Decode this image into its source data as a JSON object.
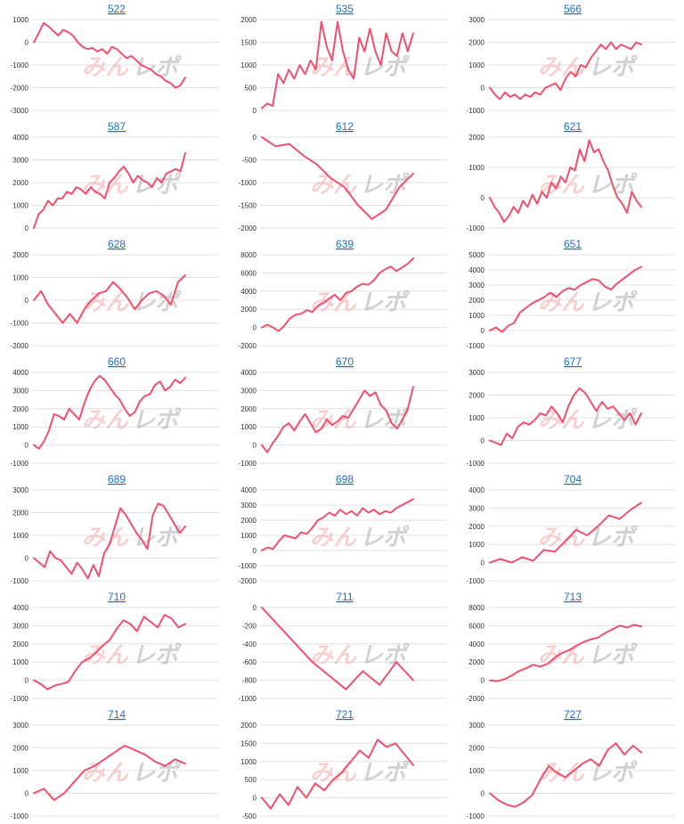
{
  "style": {
    "line_color": "#f0506e",
    "grid_color": "#e0e0e0",
    "title_color": "#1a6fd1",
    "watermark_pink": "#f2b4b4",
    "watermark_gray": "#b5b5b5"
  },
  "watermark": {
    "part1": "みん",
    "part2": "レポ"
  },
  "chart_data": [
    {
      "type": "line",
      "title": "522",
      "ylim": [
        -3000,
        1000
      ],
      "yticks": [
        "1000",
        "0",
        "-1000",
        "-2000",
        "-3000"
      ],
      "y": [
        0,
        400,
        850,
        700,
        500,
        300,
        550,
        450,
        300,
        0,
        -200,
        -300,
        -250,
        -400,
        -300,
        -500,
        -200,
        -300,
        -500,
        -700,
        -600,
        -800,
        -1000,
        -1100,
        -1200,
        -1400,
        -1500,
        -1700,
        -1800,
        -2000,
        -1900,
        -1550
      ]
    },
    {
      "type": "line",
      "title": "535",
      "ylim": [
        0,
        2000
      ],
      "yticks": [
        "2000",
        "1500",
        "1000",
        "500",
        "0"
      ],
      "y": [
        50,
        150,
        100,
        800,
        600,
        900,
        700,
        1000,
        800,
        1100,
        900,
        1950,
        1400,
        1100,
        1950,
        1300,
        900,
        700,
        1600,
        1300,
        1800,
        1300,
        1000,
        1700,
        1300,
        1200,
        1700,
        1300,
        1700
      ]
    },
    {
      "type": "line",
      "title": "566",
      "ylim": [
        -1000,
        3000
      ],
      "yticks": [
        "3000",
        "2000",
        "1000",
        "0",
        "-1000"
      ],
      "y": [
        0,
        -300,
        -500,
        -200,
        -400,
        -300,
        -500,
        -300,
        -400,
        -200,
        -300,
        0,
        100,
        200,
        -100,
        400,
        700,
        500,
        1000,
        900,
        1300,
        1600,
        1900,
        1700,
        2000,
        1700,
        1900,
        1800,
        1700,
        2000,
        1900
      ]
    },
    {
      "type": "line",
      "title": "587",
      "ylim": [
        0,
        4000
      ],
      "yticks": [
        "4000",
        "3000",
        "2000",
        "1000",
        "0"
      ],
      "y": [
        0,
        600,
        800,
        1200,
        1000,
        1300,
        1300,
        1600,
        1500,
        1800,
        1700,
        1500,
        1800,
        1600,
        1500,
        1300,
        2000,
        2200,
        2500,
        2700,
        2400,
        2000,
        2300,
        2100,
        2000,
        1800,
        2200,
        2000,
        2400,
        2500,
        2600,
        2500,
        3300
      ]
    },
    {
      "type": "line",
      "title": "612",
      "ylim": [
        -2000,
        0
      ],
      "yticks": [
        "0",
        "-500",
        "-1000",
        "-1500",
        "-2000"
      ],
      "y": [
        0,
        -200,
        -150,
        -400,
        -600,
        -900,
        -1100,
        -1500,
        -1800,
        -1600,
        -1100,
        -800
      ]
    },
    {
      "type": "line",
      "title": "621",
      "ylim": [
        -1000,
        2000
      ],
      "yticks": [
        "2000",
        "1000",
        "0",
        "-1000"
      ],
      "y": [
        0,
        -300,
        -500,
        -800,
        -600,
        -300,
        -500,
        -100,
        -300,
        100,
        -200,
        200,
        0,
        500,
        300,
        700,
        500,
        1000,
        900,
        1600,
        1200,
        1900,
        1500,
        1600,
        1200,
        900,
        400,
        0,
        -200,
        -500,
        200,
        -100,
        -300
      ]
    },
    {
      "type": "line",
      "title": "628",
      "ylim": [
        -2000,
        2000
      ],
      "yticks": [
        "2000",
        "1000",
        "0",
        "-1000",
        "-2000"
      ],
      "y": [
        0,
        400,
        -200,
        -600,
        -1000,
        -600,
        -1000,
        -400,
        0,
        300,
        400,
        800,
        500,
        100,
        -400,
        0,
        300,
        400,
        200,
        -200,
        800,
        1100
      ]
    },
    {
      "type": "line",
      "title": "639",
      "ylim": [
        -2000,
        8000
      ],
      "yticks": [
        "8000",
        "6000",
        "4000",
        "2000",
        "0",
        "-2000"
      ],
      "y": [
        0,
        300,
        0,
        -400,
        200,
        1000,
        1400,
        1500,
        1900,
        1700,
        2400,
        2700,
        3200,
        3600,
        3000,
        3800,
        4000,
        4500,
        4800,
        4700,
        5200,
        6000,
        6400,
        6700,
        6200,
        6600,
        7000,
        7600
      ]
    },
    {
      "type": "line",
      "title": "651",
      "ylim": [
        -1000,
        5000
      ],
      "yticks": [
        "5000",
        "4000",
        "3000",
        "2000",
        "1000",
        "0",
        "-1000"
      ],
      "y": [
        0,
        200,
        -100,
        300,
        500,
        1200,
        1500,
        1800,
        2000,
        2200,
        2500,
        2200,
        2600,
        2800,
        2700,
        3000,
        3200,
        3400,
        3300,
        2900,
        2700,
        3100,
        3400,
        3700,
        4000,
        4200
      ]
    },
    {
      "type": "line",
      "title": "660",
      "ylim": [
        -1000,
        4000
      ],
      "yticks": [
        "4000",
        "3000",
        "2000",
        "1000",
        "0",
        "-1000"
      ],
      "y": [
        0,
        -200,
        200,
        800,
        1700,
        1600,
        1400,
        2000,
        1700,
        1400,
        2300,
        3000,
        3500,
        3800,
        3600,
        3200,
        2800,
        2500,
        2000,
        1600,
        1800,
        2400,
        2700,
        2800,
        3300,
        3500,
        3000,
        3200,
        3600,
        3400,
        3700
      ]
    },
    {
      "type": "line",
      "title": "670",
      "ylim": [
        -1000,
        4000
      ],
      "yticks": [
        "4000",
        "3000",
        "2000",
        "1000",
        "0",
        "-1000"
      ],
      "y": [
        0,
        -400,
        100,
        500,
        1000,
        1200,
        800,
        1300,
        1700,
        1200,
        700,
        900,
        1400,
        1100,
        1300,
        1600,
        1500,
        2000,
        2500,
        3000,
        2700,
        2900,
        2200,
        1900,
        1200,
        900,
        1400,
        2000,
        3200
      ]
    },
    {
      "type": "line",
      "title": "677",
      "ylim": [
        -1000,
        3000
      ],
      "yticks": [
        "3000",
        "2000",
        "1000",
        "0",
        "-1000"
      ],
      "y": [
        0,
        -100,
        -200,
        300,
        100,
        600,
        800,
        700,
        900,
        1200,
        1100,
        1500,
        1200,
        800,
        1500,
        2000,
        2300,
        2100,
        1700,
        1300,
        1700,
        1400,
        1500,
        1200,
        900,
        1200,
        700,
        1200
      ]
    },
    {
      "type": "line",
      "title": "689",
      "ylim": [
        -1000,
        3000
      ],
      "yticks": [
        "3000",
        "2000",
        "1000",
        "0",
        "-1000"
      ],
      "y": [
        0,
        -200,
        -400,
        300,
        0,
        -100,
        -400,
        -700,
        -200,
        -500,
        -900,
        -300,
        -800,
        200,
        600,
        1400,
        2200,
        1900,
        1500,
        1100,
        800,
        400,
        1900,
        2400,
        2300,
        1900,
        1500,
        1100,
        1400
      ]
    },
    {
      "type": "line",
      "title": "698",
      "ylim": [
        -2000,
        4000
      ],
      "yticks": [
        "4000",
        "3000",
        "2000",
        "1000",
        "0",
        "-1000",
        "-2000"
      ],
      "y": [
        0,
        200,
        100,
        600,
        1000,
        900,
        800,
        1200,
        1100,
        1500,
        2000,
        2200,
        2500,
        2300,
        2700,
        2400,
        2600,
        2300,
        2800,
        2500,
        2700,
        2400,
        2600,
        2500,
        2800,
        3000,
        3200,
        3400
      ]
    },
    {
      "type": "line",
      "title": "704",
      "ylim": [
        -1000,
        4000
      ],
      "yticks": [
        "4000",
        "3000",
        "2000",
        "1000",
        "0",
        "-1000"
      ],
      "y": [
        0,
        200,
        0,
        300,
        100,
        700,
        600,
        1200,
        1800,
        1500,
        2000,
        2600,
        2400,
        2900,
        3300
      ]
    },
    {
      "type": "line",
      "title": "710",
      "ylim": [
        -1000,
        4000
      ],
      "yticks": [
        "4000",
        "3000",
        "2000",
        "1000",
        "0",
        "-1000"
      ],
      "y": [
        0,
        -200,
        -500,
        -300,
        -200,
        -100,
        500,
        1000,
        1200,
        1500,
        1900,
        2200,
        2800,
        3300,
        3100,
        2700,
        3500,
        3200,
        2900,
        3600,
        3400,
        2900,
        3100
      ]
    },
    {
      "type": "line",
      "title": "711",
      "ylim": [
        -1000,
        0
      ],
      "yticks": [
        "0",
        "-200",
        "-400",
        "-600",
        "-800",
        "-1000"
      ],
      "y": [
        0,
        -200,
        -400,
        -600,
        -750,
        -900,
        -700,
        -850,
        -600,
        -800
      ]
    },
    {
      "type": "line",
      "title": "713",
      "ylim": [
        -2000,
        8000
      ],
      "yticks": [
        "8000",
        "6000",
        "4000",
        "2000",
        "0",
        "-2000"
      ],
      "y": [
        0,
        -100,
        100,
        500,
        1000,
        1300,
        1700,
        1500,
        1800,
        2500,
        3000,
        3300,
        3800,
        4200,
        4500,
        4700,
        5200,
        5600,
        6000,
        5800,
        6100,
        5900
      ]
    },
    {
      "type": "line",
      "title": "714",
      "ylim": [
        -1000,
        3000
      ],
      "yticks": [
        "3000",
        "2000",
        "1000",
        "0",
        "-1000"
      ],
      "y": [
        0,
        200,
        -300,
        0,
        500,
        1000,
        1200,
        1500,
        1800,
        2100,
        1900,
        1700,
        1400,
        1200,
        1500,
        1300
      ]
    },
    {
      "type": "line",
      "title": "721",
      "ylim": [
        -500,
        2000
      ],
      "yticks": [
        "2000",
        "1500",
        "1000",
        "500",
        "0",
        "-500"
      ],
      "y": [
        0,
        -300,
        100,
        -200,
        300,
        0,
        400,
        200,
        500,
        700,
        1000,
        1300,
        1100,
        1600,
        1400,
        1500,
        1200,
        900
      ]
    },
    {
      "type": "line",
      "title": "727",
      "ylim": [
        -1000,
        3000
      ],
      "yticks": [
        "3000",
        "2000",
        "1000",
        "0",
        "-1000"
      ],
      "y": [
        0,
        -300,
        -500,
        -600,
        -400,
        -100,
        600,
        1200,
        900,
        700,
        1000,
        1300,
        1500,
        1200,
        1900,
        2200,
        1700,
        2100,
        1800
      ]
    }
  ]
}
